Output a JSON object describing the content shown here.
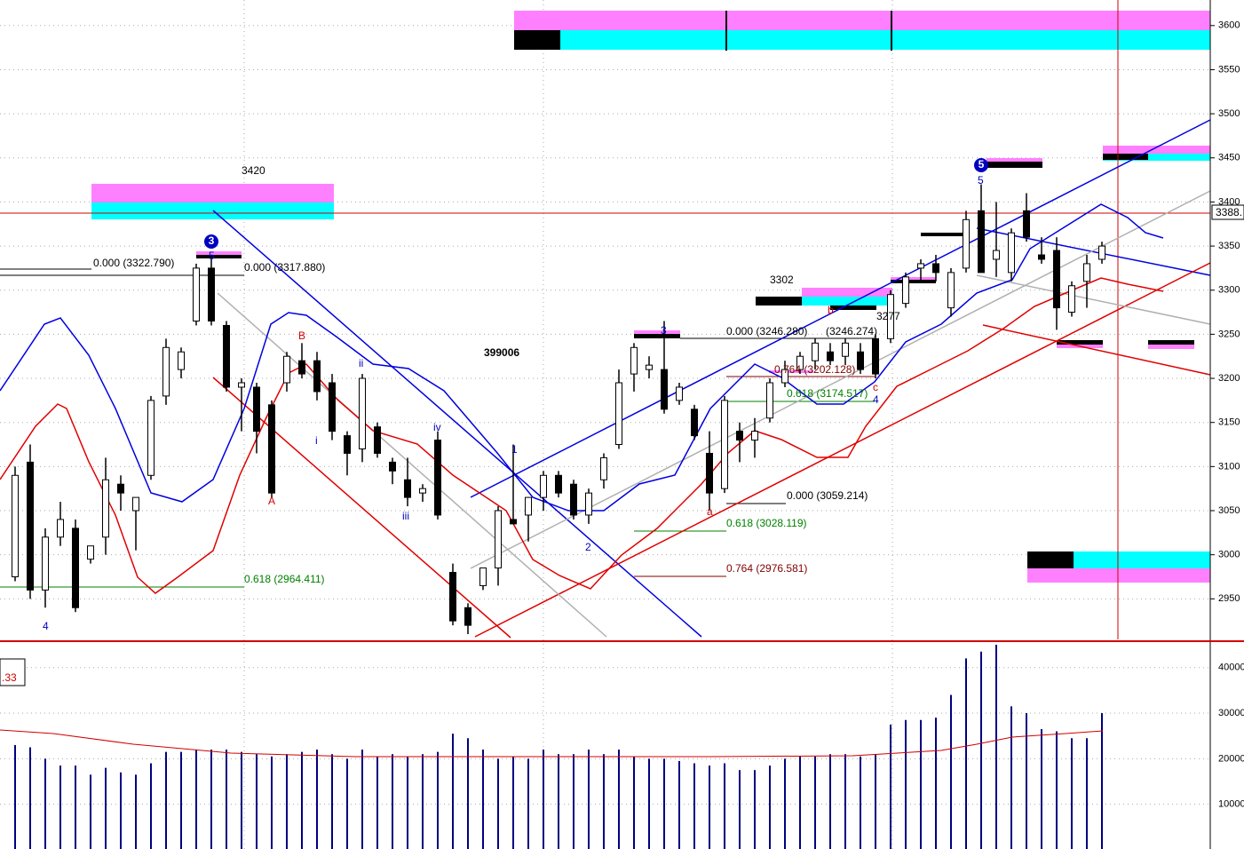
{
  "chart_data": {
    "type": "candlestick",
    "ylim": [
      2904,
      3629
    ],
    "yticks": [
      2950,
      3000,
      3050,
      3100,
      3150,
      3200,
      3250,
      3300,
      3350,
      3400,
      3450,
      3500,
      3550,
      3600
    ],
    "grid": true,
    "up_color": "#ffffff",
    "down_color": "#000000",
    "candles": [
      {
        "open": 2975,
        "high": 3100,
        "low": 2970,
        "close": 3090
      },
      {
        "open": 3105,
        "high": 3125,
        "low": 2950,
        "close": 2960
      },
      {
        "open": 2960,
        "high": 3030,
        "low": 2940,
        "close": 3020
      },
      {
        "open": 3020,
        "high": 3060,
        "low": 3010,
        "close": 3040
      },
      {
        "open": 3030,
        "high": 3040,
        "low": 2935,
        "close": 2940
      },
      {
        "open": 2995,
        "high": 3010,
        "low": 2990,
        "close": 3010
      },
      {
        "open": 3020,
        "high": 3110,
        "low": 3000,
        "close": 3085
      },
      {
        "open": 3080,
        "high": 3090,
        "low": 3050,
        "close": 3070
      },
      {
        "open": 3050,
        "high": 3065,
        "low": 3005,
        "close": 3065
      },
      {
        "open": 3090,
        "high": 3180,
        "low": 3085,
        "close": 3175
      },
      {
        "open": 3180,
        "high": 3245,
        "low": 3170,
        "close": 3235
      },
      {
        "open": 3210,
        "high": 3235,
        "low": 3200,
        "close": 3230
      },
      {
        "open": 3265,
        "high": 3330,
        "low": 3260,
        "close": 3325
      },
      {
        "open": 3325,
        "high": 3335,
        "low": 3260,
        "close": 3265
      },
      {
        "open": 3260,
        "high": 3265,
        "low": 3185,
        "close": 3190
      },
      {
        "open": 3190,
        "high": 3200,
        "low": 3140,
        "close": 3195
      },
      {
        "open": 3190,
        "high": 3195,
        "low": 3115,
        "close": 3140
      },
      {
        "open": 3170,
        "high": 3175,
        "low": 3065,
        "close": 3070
      },
      {
        "open": 3195,
        "high": 3230,
        "low": 3185,
        "close": 3225
      },
      {
        "open": 3220,
        "high": 3240,
        "low": 3200,
        "close": 3205
      },
      {
        "open": 3220,
        "high": 3230,
        "low": 3175,
        "close": 3185
      },
      {
        "open": 3195,
        "high": 3205,
        "low": 3130,
        "close": 3140
      },
      {
        "open": 3135,
        "high": 3140,
        "low": 3090,
        "close": 3115
      },
      {
        "open": 3120,
        "high": 3205,
        "low": 3105,
        "close": 3200
      },
      {
        "open": 3145,
        "high": 3150,
        "low": 3110,
        "close": 3115
      },
      {
        "open": 3105,
        "high": 3110,
        "low": 3080,
        "close": 3095
      },
      {
        "open": 3085,
        "high": 3110,
        "low": 3055,
        "close": 3065
      },
      {
        "open": 3070,
        "high": 3080,
        "low": 3060,
        "close": 3075
      },
      {
        "open": 3130,
        "high": 3140,
        "low": 3040,
        "close": 3045
      },
      {
        "open": 2980,
        "high": 2990,
        "low": 2920,
        "close": 2925
      },
      {
        "open": 2940,
        "high": 2945,
        "low": 2910,
        "close": 2920
      },
      {
        "open": 2965,
        "high": 2985,
        "low": 2960,
        "close": 2985
      },
      {
        "open": 2985,
        "high": 3055,
        "low": 2965,
        "close": 3050
      },
      {
        "open": 3040,
        "high": 3125,
        "low": 3035,
        "close": 3035
      },
      {
        "open": 3045,
        "high": 3065,
        "low": 3015,
        "close": 3065
      },
      {
        "open": 3065,
        "high": 3095,
        "low": 3050,
        "close": 3090
      },
      {
        "open": 3090,
        "high": 3095,
        "low": 3065,
        "close": 3070
      },
      {
        "open": 3080,
        "high": 3085,
        "low": 3040,
        "close": 3045
      },
      {
        "open": 3045,
        "high": 3075,
        "low": 3035,
        "close": 3070
      },
      {
        "open": 3085,
        "high": 3115,
        "low": 3075,
        "close": 3110
      },
      {
        "open": 3125,
        "high": 3210,
        "low": 3120,
        "close": 3195
      },
      {
        "open": 3205,
        "high": 3240,
        "low": 3185,
        "close": 3235
      },
      {
        "open": 3210,
        "high": 3225,
        "low": 3200,
        "close": 3215
      },
      {
        "open": 3210,
        "high": 3265,
        "low": 3160,
        "close": 3165
      },
      {
        "open": 3175,
        "high": 3195,
        "low": 3170,
        "close": 3190
      },
      {
        "open": 3165,
        "high": 3170,
        "low": 3130,
        "close": 3135
      },
      {
        "open": 3115,
        "high": 3140,
        "low": 3050,
        "close": 3070
      },
      {
        "open": 3075,
        "high": 3180,
        "low": 3070,
        "close": 3175
      },
      {
        "open": 3140,
        "high": 3150,
        "low": 3105,
        "close": 3130
      },
      {
        "open": 3130,
        "high": 3155,
        "low": 3110,
        "close": 3140
      },
      {
        "open": 3155,
        "high": 3200,
        "low": 3150,
        "close": 3195
      },
      {
        "open": 3195,
        "high": 3220,
        "low": 3190,
        "close": 3210
      },
      {
        "open": 3210,
        "high": 3230,
        "low": 3205,
        "close": 3225
      },
      {
        "open": 3220,
        "high": 3245,
        "low": 3210,
        "close": 3240
      },
      {
        "open": 3230,
        "high": 3240,
        "low": 3215,
        "close": 3220
      },
      {
        "open": 3225,
        "high": 3245,
        "low": 3215,
        "close": 3240
      },
      {
        "open": 3230,
        "high": 3240,
        "low": 3205,
        "close": 3210
      },
      {
        "open": 3245,
        "high": 3250,
        "low": 3200,
        "close": 3205
      },
      {
        "open": 3245,
        "high": 3300,
        "low": 3240,
        "close": 3295
      },
      {
        "open": 3285,
        "high": 3320,
        "low": 3280,
        "close": 3315
      },
      {
        "open": 3325,
        "high": 3335,
        "low": 3310,
        "close": 3330
      },
      {
        "open": 3330,
        "high": 3340,
        "low": 3310,
        "close": 3320
      },
      {
        "open": 3280,
        "high": 3325,
        "low": 3270,
        "close": 3320
      },
      {
        "open": 3325,
        "high": 3390,
        "low": 3320,
        "close": 3380
      },
      {
        "open": 3390,
        "high": 3420,
        "low": 3320,
        "close": 3320
      },
      {
        "open": 3335,
        "high": 3400,
        "low": 3315,
        "close": 3345
      },
      {
        "open": 3320,
        "high": 3370,
        "low": 3310,
        "close": 3365
      },
      {
        "open": 3390,
        "high": 3410,
        "low": 3355,
        "close": 3360
      },
      {
        "open": 3340,
        "high": 3360,
        "low": 3330,
        "close": 3335
      },
      {
        "open": 3345,
        "high": 3360,
        "low": 3255,
        "close": 3280
      },
      {
        "open": 3275,
        "high": 3310,
        "low": 3270,
        "close": 3305
      },
      {
        "open": 3310,
        "high": 3340,
        "low": 3280,
        "close": 3330
      },
      {
        "open": 3335,
        "high": 3355,
        "low": 3330,
        "close": 3350
      }
    ],
    "volume": {
      "color": "#000080",
      "ylim": [
        0,
        45200
      ],
      "yticks": [
        10000,
        20000,
        30000,
        40000
      ],
      "values": [
        23000,
        22500,
        20000,
        18500,
        18500,
        16500,
        18000,
        17000,
        16500,
        19000,
        21500,
        21500,
        22000,
        22000,
        22000,
        21500,
        21000,
        20500,
        21000,
        21500,
        22000,
        21000,
        20000,
        22000,
        20500,
        21000,
        20500,
        21000,
        21500,
        25500,
        24500,
        22000,
        20000,
        20500,
        20000,
        22000,
        21000,
        21000,
        22000,
        21000,
        22000,
        20500,
        20000,
        20000,
        19500,
        19000,
        18500,
        19000,
        17500,
        17500,
        18500,
        20000,
        20500,
        20500,
        21000,
        21000,
        20500,
        21000,
        27500,
        28500,
        28500,
        29000,
        34000,
        42000,
        43500,
        45000,
        31500,
        30000,
        26500,
        26000,
        24500,
        24500,
        30000
      ]
    },
    "annotations": [
      {
        "text": "3420",
        "color": "#000000"
      },
      {
        "text": "0.000 (3322.790)",
        "color": "#000000"
      },
      {
        "text": "0.000 (3317.880)",
        "color": "#000000"
      },
      {
        "text": "0.618 (2964.411)",
        "color": "#008000"
      },
      {
        "text": "399006",
        "color": "#000000"
      },
      {
        "text": "3302",
        "color": "#000000"
      },
      {
        "text": "0.000 (3246.280)",
        "color": "#000000"
      },
      {
        "text": "(3246.274)",
        "color": "#000000"
      },
      {
        "text": "0.764 (3202.128)",
        "color": "#800000"
      },
      {
        "text": "0.618 (3174.517)",
        "color": "#008000"
      },
      {
        "text": "0.000 (3059.214)",
        "color": "#000000"
      },
      {
        "text": "0.618 (3028.119)",
        "color": "#008000"
      },
      {
        "text": "0.764 (2976.581)",
        "color": "#800000"
      },
      {
        "text": "3277",
        "color": "#000000"
      },
      {
        "text": "4",
        "color": "#0000c0"
      },
      {
        "text": "3",
        "color": "#ffffff",
        "circled": true
      },
      {
        "text": "5",
        "color": "#0000c0"
      },
      {
        "text": "A",
        "color": "#d00000"
      },
      {
        "text": "B",
        "color": "#d00000"
      },
      {
        "text": "i",
        "color": "#0000c0"
      },
      {
        "text": "ii",
        "color": "#0000c0"
      },
      {
        "text": "iii",
        "color": "#0000c0"
      },
      {
        "text": "iv",
        "color": "#0000c0"
      },
      {
        "text": "1",
        "color": "#0000c0"
      },
      {
        "text": "2",
        "color": "#0000c0"
      },
      {
        "text": "3",
        "color": "#0000c0"
      },
      {
        "text": "a",
        "color": "#d00000"
      },
      {
        "text": "b",
        "color": "#d00000"
      },
      {
        "text": "c",
        "color": "#d00000"
      },
      {
        "text": "4",
        "color": "#0000c0"
      },
      {
        "text": "5",
        "color": "#ffffff",
        "circled": true
      },
      {
        "text": "5",
        "color": "#0000c0"
      },
      {
        "text": ".33",
        "color": "#d00000"
      },
      {
        "text": "3388.",
        "color": "#000000"
      }
    ]
  }
}
